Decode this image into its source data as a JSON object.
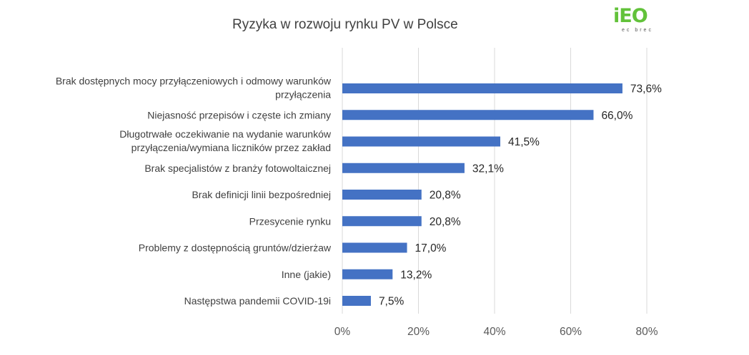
{
  "logo": {
    "main": "iEO",
    "sub": "ec brec"
  },
  "chart_data": {
    "type": "bar",
    "orientation": "horizontal",
    "title": "Ryzyka w rozwoju rynku PV w Polsce",
    "xlabel": "",
    "ylabel": "",
    "xlim": [
      0,
      80
    ],
    "x_ticks": [
      0,
      20,
      40,
      60,
      80
    ],
    "x_tick_labels": [
      "0%",
      "20%",
      "40%",
      "60%",
      "80%"
    ],
    "grid": "vertical",
    "bar_color": "#4472c4",
    "gridline_color": "#d9d9d9",
    "categories": [
      [
        "Brak dostępnych mocy przyłączeniowych i odmowy warunków",
        "przyłączenia"
      ],
      [
        "Niejasność przepisów i częste ich zmiany"
      ],
      [
        "Długotrwałe oczekiwanie na wydanie warunków",
        "przyłączenia/wymiana liczników przez zakład"
      ],
      [
        "Brak specjalistów z branży fotowoltaicznej"
      ],
      [
        "Brak definicji linii bezpośredniej"
      ],
      [
        "Przesycenie rynku"
      ],
      [
        "Problemy z dostępnością gruntów/dzierżaw"
      ],
      [
        "Inne (jakie)"
      ],
      [
        "Następstwa pandemii COVID-19i"
      ]
    ],
    "values": [
      73.6,
      66.0,
      41.5,
      32.1,
      20.8,
      20.8,
      17.0,
      13.2,
      7.5
    ],
    "value_labels": [
      "73,6%",
      "66,0%",
      "41,5%",
      "32,1%",
      "20,8%",
      "20,8%",
      "17,0%",
      "13,2%",
      "7,5%"
    ]
  }
}
